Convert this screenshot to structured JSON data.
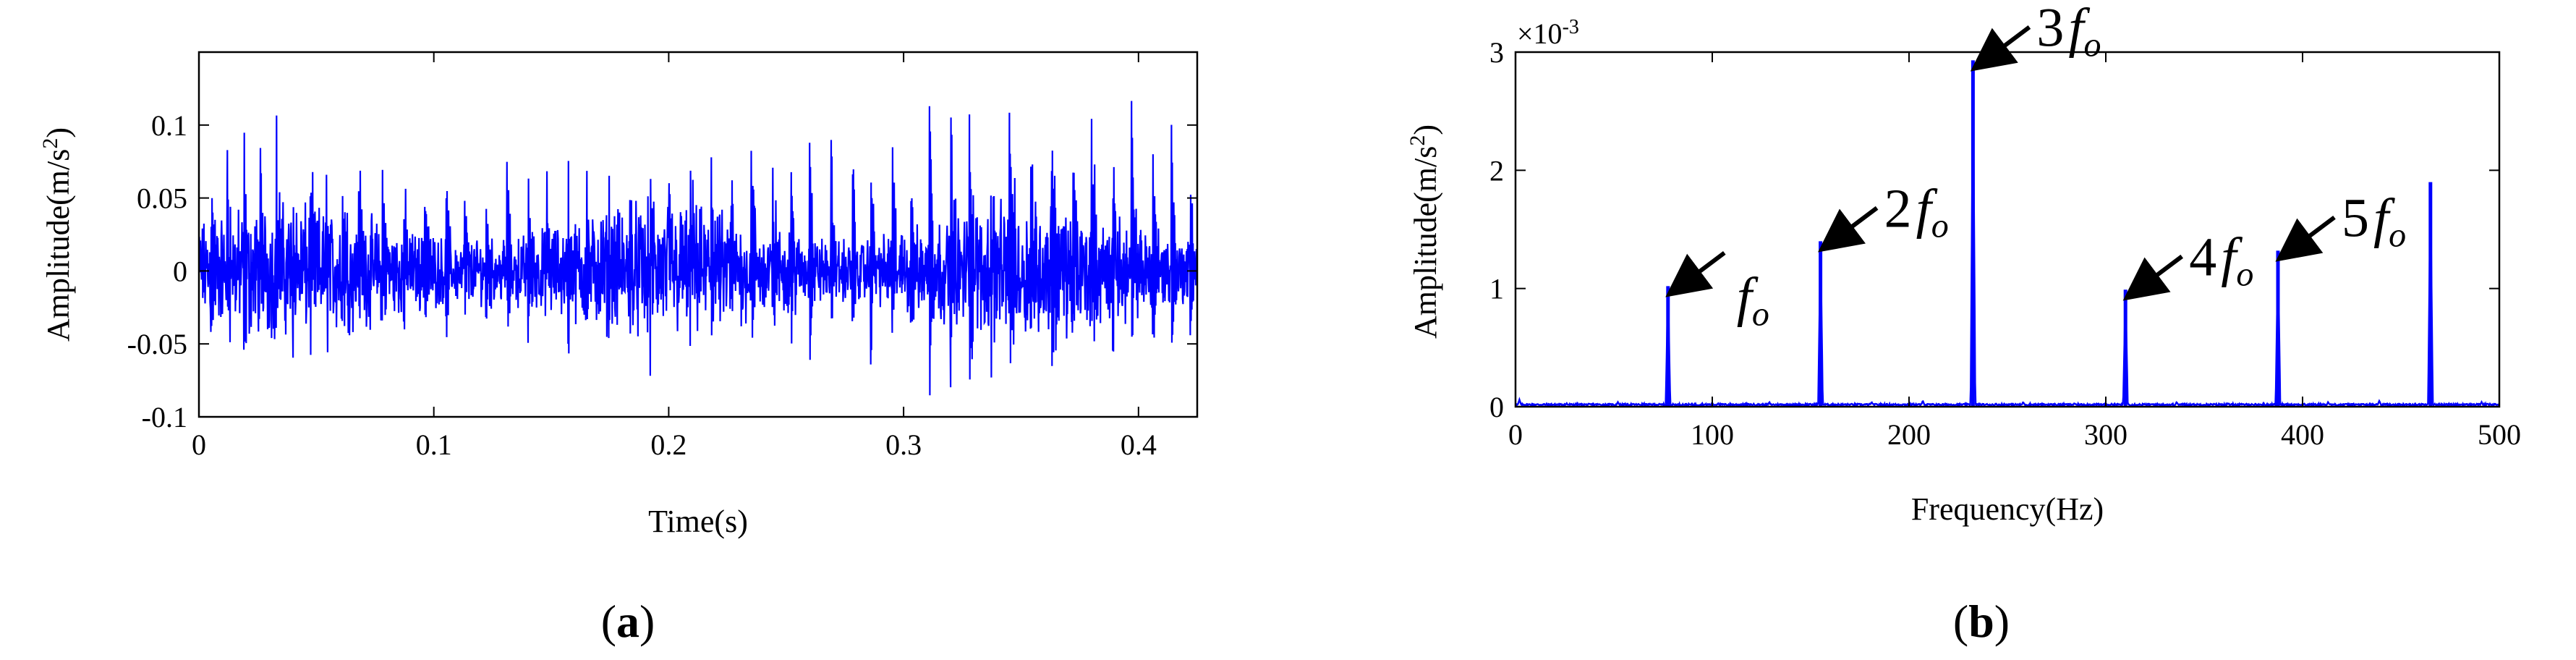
{
  "panels": [
    {
      "label": "(a)",
      "chart_data": {
        "type": "line",
        "xlabel": "Time(s)",
        "ylabel_main": "Amplitude(m/s",
        "ylabel_sup": "2",
        "ylabel_tail": ")",
        "xlim": [
          0,
          0.425
        ],
        "ylim": [
          -0.1,
          0.15
        ],
        "xticks": [
          0,
          0.1,
          0.2,
          0.3,
          0.4
        ],
        "xtick_labels": [
          "0",
          "0.1",
          "0.2",
          "0.3",
          "0.4"
        ],
        "yticks": [
          -0.1,
          -0.05,
          0,
          0.05,
          0.1
        ],
        "ytick_labels": [
          "-0.1",
          "-0.05",
          "0",
          "0.05",
          "0.1"
        ],
        "grid": false,
        "series": [
          {
            "color": "#0000ff",
            "description_points": {
              "impulse_times": [
                0.005,
                0.012,
                0.019,
                0.026,
                0.033,
                0.04,
                0.047,
                0.054,
                0.061,
                0.068,
                0.078,
                0.087,
                0.096,
                0.105,
                0.113,
                0.122,
                0.131,
                0.14,
                0.148,
                0.157,
                0.165,
                0.174,
                0.183,
                0.192,
                0.2,
                0.209,
                0.218,
                0.226,
                0.235,
                0.244,
                0.252,
                0.26,
                0.269,
                0.278,
                0.286,
                0.295,
                0.303,
                0.311,
                0.32,
                0.328,
                0.337,
                0.345,
                0.354,
                0.363,
                0.372,
                0.38,
                0.389,
                0.397,
                0.406,
                0.414,
                0.422
              ],
              "impulse_peaks": [
                0.06,
                0.075,
                0.08,
                0.05,
                0.07,
                0.065,
                0.06,
                0.055,
                0.07,
                0.065,
                0.075,
                0.06,
                0.07,
                0.065,
                0.06,
                0.055,
                0.07,
                0.065,
                0.06,
                0.07,
                0.065,
                0.06,
                0.055,
                0.065,
                0.06,
                0.07,
                0.09,
                0.075,
                0.08,
                0.085,
                0.07,
                0.1,
                0.09,
                0.095,
                0.08,
                0.11,
                0.08,
                0.13,
                0.11,
                0.12,
                0.08,
                0.11,
                0.09,
                0.1,
                0.08,
                0.11,
                0.09,
                0.1,
                0.09,
                0.09,
                0.08
              ]
            }
          }
        ]
      }
    },
    {
      "label": "(b)",
      "chart_data": {
        "type": "line",
        "xlabel": "Frequency(Hz)",
        "ylabel_main": "Amplitude(m/s",
        "ylabel_sup": "2",
        "ylabel_tail": ")",
        "scale_note_main": "×10",
        "scale_note_sup": "-3",
        "xlim": [
          0,
          500
        ],
        "ylim": [
          0,
          3
        ],
        "xticks": [
          0,
          100,
          200,
          300,
          400,
          500
        ],
        "xtick_labels": [
          "0",
          "100",
          "200",
          "300",
          "400",
          "500"
        ],
        "yticks": [
          0,
          1,
          2,
          3
        ],
        "ytick_labels": [
          "0",
          "1",
          "2",
          "3"
        ],
        "grid": false,
        "series": [
          {
            "color": "#0000ff",
            "peaks": [
              {
                "x": 77.5,
                "y": 1.02
              },
              {
                "x": 155,
                "y": 1.4
              },
              {
                "x": 232.5,
                "y": 2.93
              },
              {
                "x": 310,
                "y": 0.99
              },
              {
                "x": 387.5,
                "y": 1.32
              },
              {
                "x": 465,
                "y": 1.9
              }
            ],
            "minor_peaks": [
              {
                "x": 2,
                "y": 0.06
              },
              {
                "x": 26,
                "y": 0.03
              },
              {
                "x": 52,
                "y": 0.04
              },
              {
                "x": 103,
                "y": 0.03
              },
              {
                "x": 129,
                "y": 0.04
              },
              {
                "x": 181,
                "y": 0.04
              },
              {
                "x": 207,
                "y": 0.05
              },
              {
                "x": 258,
                "y": 0.04
              },
              {
                "x": 284,
                "y": 0.03
              },
              {
                "x": 336,
                "y": 0.04
              },
              {
                "x": 362,
                "y": 0.03
              },
              {
                "x": 413,
                "y": 0.04
              },
              {
                "x": 439,
                "y": 0.05
              },
              {
                "x": 491,
                "y": 0.04
              }
            ]
          }
        ],
        "annotations": [
          {
            "coef": "",
            "sym": "f",
            "sub": "o",
            "peak_x": 77.5,
            "peak_y": 1.02
          },
          {
            "coef": "2",
            "sym": "f",
            "sub": "o",
            "peak_x": 155,
            "peak_y": 1.4
          },
          {
            "coef": "3",
            "sym": "f",
            "sub": "o",
            "peak_x": 232.5,
            "peak_y": 2.93
          },
          {
            "coef": "4",
            "sym": "f",
            "sub": "o",
            "peak_x": 310,
            "peak_y": 0.99
          },
          {
            "coef": "5",
            "sym": "f",
            "sub": "o",
            "peak_x": 387.5,
            "peak_y": 1.32
          }
        ]
      }
    }
  ]
}
